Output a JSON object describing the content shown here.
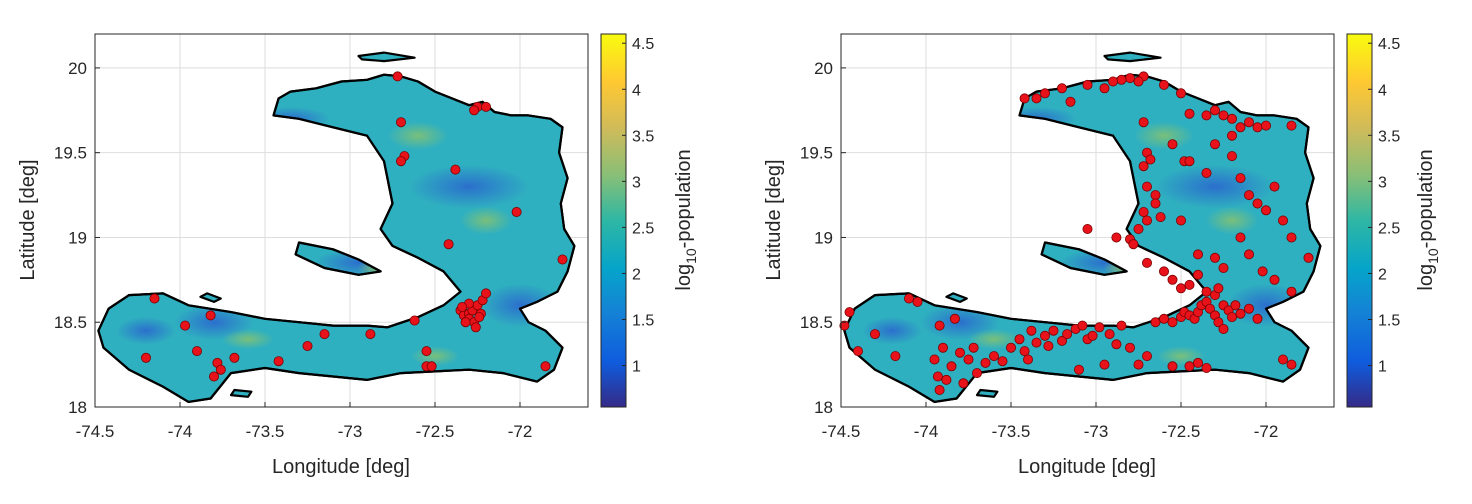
{
  "colors": {
    "point_fill": "#e8121b",
    "point_edge": "#7a0000",
    "colormap": "parula"
  },
  "chart_data": [
    {
      "type": "scatter",
      "xlabel": "Longitude [deg]",
      "ylabel": "Latitude [deg]",
      "xlim": [
        -74.5,
        -71.6
      ],
      "ylim": [
        18.0,
        20.2
      ],
      "x_ticks": [
        "-74.5",
        "-74",
        "-73.5",
        "-73",
        "-72.5",
        "-72"
      ],
      "y_ticks": [
        "18",
        "18.5",
        "19",
        "19.5",
        "20"
      ],
      "grid": true,
      "colorbar": {
        "label_main": "log",
        "label_sub": "10",
        "label_rest": "-population",
        "range": [
          0.55,
          4.6
        ],
        "ticks": [
          "1",
          "1.5",
          "2",
          "2.5",
          "3",
          "3.5",
          "4",
          "4.5"
        ]
      },
      "series": [
        {
          "points": [
            [
              -74.15,
              18.64
            ],
            [
              -74.2,
              18.29
            ],
            [
              -73.97,
              18.48
            ],
            [
              -73.82,
              18.54
            ],
            [
              -73.8,
              18.18
            ],
            [
              -73.78,
              18.26
            ],
            [
              -73.76,
              18.22
            ],
            [
              -73.9,
              18.33
            ],
            [
              -73.68,
              18.29
            ],
            [
              -73.42,
              18.27
            ],
            [
              -73.25,
              18.36
            ],
            [
              -73.15,
              18.43
            ],
            [
              -72.88,
              18.43
            ],
            [
              -72.62,
              18.51
            ],
            [
              -72.55,
              18.33
            ],
            [
              -72.55,
              18.24
            ],
            [
              -72.52,
              18.24
            ],
            [
              -72.7,
              19.68
            ],
            [
              -72.68,
              19.48
            ],
            [
              -72.7,
              19.45
            ],
            [
              -72.72,
              19.95
            ],
            [
              -72.38,
              19.4
            ],
            [
              -72.25,
              19.77
            ],
            [
              -72.27,
              19.75
            ],
            [
              -72.2,
              19.77
            ],
            [
              -72.02,
              19.15
            ],
            [
              -71.75,
              18.87
            ],
            [
              -72.42,
              18.96
            ],
            [
              -71.85,
              18.24
            ],
            [
              -72.35,
              18.57
            ],
            [
              -72.33,
              18.54
            ],
            [
              -72.3,
              18.55
            ],
            [
              -72.28,
              18.57
            ],
            [
              -72.3,
              18.52
            ],
            [
              -72.27,
              18.5
            ],
            [
              -72.25,
              18.6
            ],
            [
              -72.23,
              18.55
            ],
            [
              -72.22,
              18.63
            ],
            [
              -72.2,
              18.67
            ],
            [
              -72.32,
              18.5
            ],
            [
              -72.26,
              18.47
            ],
            [
              -72.3,
              18.61
            ],
            [
              -72.34,
              18.59
            ],
            [
              -72.24,
              18.53
            ]
          ]
        }
      ]
    },
    {
      "type": "scatter",
      "xlabel": "Longitude [deg]",
      "ylabel": "Latitude [deg]",
      "xlim": [
        -74.5,
        -71.6
      ],
      "ylim": [
        18.0,
        20.2
      ],
      "x_ticks": [
        "-74.5",
        "-74",
        "-73.5",
        "-73",
        "-72.5",
        "-72"
      ],
      "y_ticks": [
        "18",
        "18.5",
        "19",
        "19.5",
        "20"
      ],
      "grid": true,
      "colorbar": {
        "label_main": "log",
        "label_sub": "10",
        "label_rest": "-population",
        "range": [
          0.55,
          4.6
        ],
        "ticks": [
          "1",
          "1.5",
          "2",
          "2.5",
          "3",
          "3.5",
          "4",
          "4.5"
        ]
      },
      "series": [
        {
          "points": [
            [
              -74.45,
              18.56
            ],
            [
              -74.48,
              18.48
            ],
            [
              -74.4,
              18.33
            ],
            [
              -74.3,
              18.43
            ],
            [
              -74.18,
              18.3
            ],
            [
              -74.1,
              18.64
            ],
            [
              -74.05,
              18.62
            ],
            [
              -73.92,
              18.48
            ],
            [
              -73.83,
              18.52
            ],
            [
              -73.9,
              18.35
            ],
            [
              -73.95,
              18.28
            ],
            [
              -73.93,
              18.18
            ],
            [
              -73.88,
              18.16
            ],
            [
              -73.92,
              18.1
            ],
            [
              -73.85,
              18.24
            ],
            [
              -73.8,
              18.32
            ],
            [
              -73.75,
              18.28
            ],
            [
              -73.72,
              18.35
            ],
            [
              -73.78,
              18.14
            ],
            [
              -73.7,
              18.2
            ],
            [
              -73.65,
              18.26
            ],
            [
              -73.6,
              18.3
            ],
            [
              -73.55,
              18.27
            ],
            [
              -73.5,
              18.35
            ],
            [
              -73.45,
              18.4
            ],
            [
              -73.42,
              18.33
            ],
            [
              -73.38,
              18.45
            ],
            [
              -73.35,
              18.38
            ],
            [
              -73.3,
              18.42
            ],
            [
              -73.28,
              18.36
            ],
            [
              -73.25,
              18.45
            ],
            [
              -73.2,
              18.39
            ],
            [
              -73.17,
              18.43
            ],
            [
              -73.12,
              18.46
            ],
            [
              -73.08,
              18.48
            ],
            [
              -73.05,
              18.4
            ],
            [
              -73.02,
              18.42
            ],
            [
              -72.98,
              18.47
            ],
            [
              -72.92,
              18.43
            ],
            [
              -72.88,
              18.37
            ],
            [
              -72.85,
              18.48
            ],
            [
              -72.8,
              18.35
            ],
            [
              -72.75,
              18.25
            ],
            [
              -72.7,
              18.3
            ],
            [
              -72.65,
              18.5
            ],
            [
              -72.6,
              18.52
            ],
            [
              -72.55,
              18.5
            ],
            [
              -72.5,
              18.53
            ],
            [
              -72.48,
              18.56
            ],
            [
              -72.45,
              18.54
            ],
            [
              -72.42,
              18.52
            ],
            [
              -72.4,
              18.56
            ],
            [
              -72.38,
              18.6
            ],
            [
              -72.35,
              18.62
            ],
            [
              -72.33,
              18.58
            ],
            [
              -72.3,
              18.54
            ],
            [
              -72.28,
              18.5
            ],
            [
              -72.25,
              18.6
            ],
            [
              -72.22,
              18.57
            ],
            [
              -72.2,
              18.53
            ],
            [
              -72.18,
              18.6
            ],
            [
              -72.3,
              18.66
            ],
            [
              -72.28,
              18.7
            ],
            [
              -72.35,
              18.68
            ],
            [
              -72.25,
              18.46
            ],
            [
              -72.15,
              18.55
            ],
            [
              -72.1,
              18.58
            ],
            [
              -72.05,
              18.52
            ],
            [
              -72.55,
              18.24
            ],
            [
              -72.45,
              18.24
            ],
            [
              -72.4,
              18.26
            ],
            [
              -72.35,
              18.23
            ],
            [
              -72.95,
              18.25
            ],
            [
              -73.1,
              18.22
            ],
            [
              -73.4,
              18.28
            ],
            [
              -72.72,
              19.95
            ],
            [
              -72.75,
              19.92
            ],
            [
              -72.8,
              19.94
            ],
            [
              -72.85,
              19.93
            ],
            [
              -72.9,
              19.92
            ],
            [
              -72.95,
              19.88
            ],
            [
              -73.05,
              19.9
            ],
            [
              -73.2,
              19.88
            ],
            [
              -73.35,
              19.82
            ],
            [
              -73.42,
              19.82
            ],
            [
              -73.3,
              19.85
            ],
            [
              -73.15,
              19.8
            ],
            [
              -72.6,
              19.9
            ],
            [
              -72.5,
              19.85
            ],
            [
              -72.45,
              19.73
            ],
            [
              -72.35,
              19.72
            ],
            [
              -72.3,
              19.75
            ],
            [
              -72.25,
              19.72
            ],
            [
              -72.2,
              19.7
            ],
            [
              -72.1,
              19.68
            ],
            [
              -72.05,
              19.65
            ],
            [
              -72.0,
              19.66
            ],
            [
              -71.85,
              19.66
            ],
            [
              -72.15,
              19.65
            ],
            [
              -72.2,
              19.6
            ],
            [
              -72.72,
              19.68
            ],
            [
              -72.7,
              19.5
            ],
            [
              -72.68,
              19.46
            ],
            [
              -72.72,
              19.42
            ],
            [
              -72.7,
              19.3
            ],
            [
              -72.65,
              19.25
            ],
            [
              -72.72,
              19.15
            ],
            [
              -72.7,
              19.1
            ],
            [
              -72.62,
              19.12
            ],
            [
              -72.75,
              19.05
            ],
            [
              -72.8,
              18.99
            ],
            [
              -72.78,
              18.96
            ],
            [
              -72.7,
              18.85
            ],
            [
              -72.6,
              18.8
            ],
            [
              -72.55,
              18.75
            ],
            [
              -72.5,
              18.7
            ],
            [
              -72.45,
              18.72
            ],
            [
              -72.4,
              18.78
            ],
            [
              -72.5,
              19.1
            ],
            [
              -72.55,
              19.55
            ],
            [
              -72.48,
              19.45
            ],
            [
              -72.35,
              19.38
            ],
            [
              -72.3,
              19.55
            ],
            [
              -72.2,
              19.48
            ],
            [
              -72.15,
              19.35
            ],
            [
              -72.1,
              19.25
            ],
            [
              -72.05,
              19.2
            ],
            [
              -72.0,
              19.16
            ],
            [
              -71.95,
              19.3
            ],
            [
              -71.9,
              19.1
            ],
            [
              -71.85,
              19.0
            ],
            [
              -71.75,
              18.88
            ],
            [
              -72.15,
              19.0
            ],
            [
              -72.1,
              18.9
            ],
            [
              -72.02,
              18.8
            ],
            [
              -71.95,
              18.75
            ],
            [
              -72.25,
              18.82
            ],
            [
              -72.3,
              18.88
            ],
            [
              -72.4,
              18.9
            ],
            [
              -71.85,
              18.68
            ],
            [
              -71.85,
              18.25
            ],
            [
              -71.9,
              18.28
            ],
            [
              -73.05,
              19.05
            ],
            [
              -72.88,
              19.0
            ],
            [
              -72.65,
              19.2
            ],
            [
              -72.45,
              19.45
            ]
          ]
        }
      ]
    }
  ]
}
